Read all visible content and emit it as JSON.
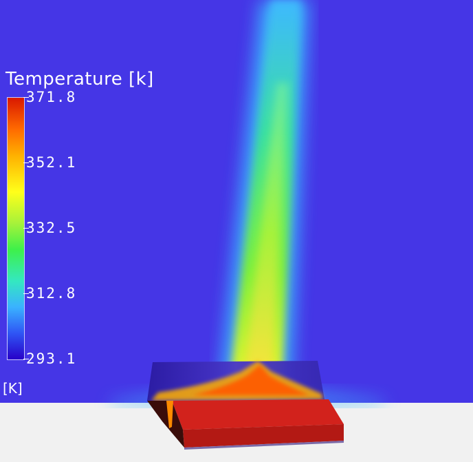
{
  "legend": {
    "title": "Temperature [k]",
    "unit": "[K]",
    "ticks": [
      "371.8",
      "352.1",
      "332.5",
      "312.8",
      "293.1"
    ]
  },
  "colors": {
    "background_fluid": "#4536e6",
    "floor": "#f1f1f1",
    "heated_block": "#c8201c"
  }
}
